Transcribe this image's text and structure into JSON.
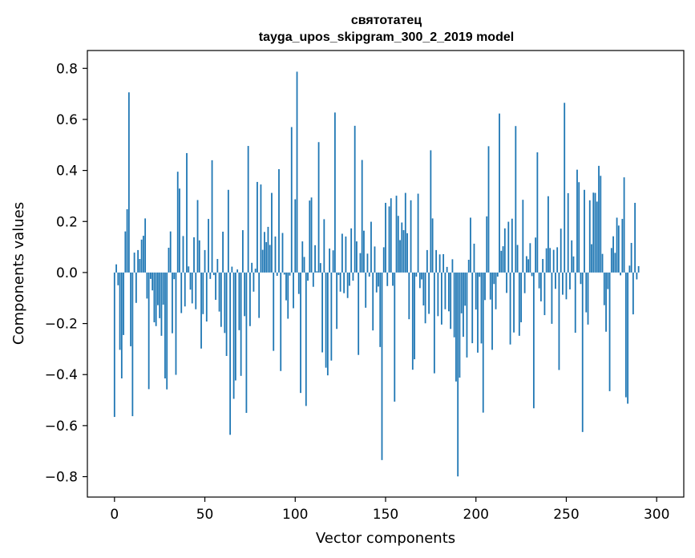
{
  "chart_data": {
    "type": "bar",
    "title": "святотатец",
    "subtitle": "tayga_upos_skipgram_300_2_2019 model",
    "xlabel": "Vector components",
    "ylabel": "Components values",
    "xlim": [
      -15,
      315
    ],
    "ylim": [
      -0.88,
      0.87
    ],
    "xticks": [
      0,
      50,
      100,
      150,
      200,
      250,
      300
    ],
    "xtick_labels": [
      "0",
      "50",
      "100",
      "150",
      "200",
      "250",
      "300"
    ],
    "yticks": [
      -0.8,
      -0.6,
      -0.4,
      -0.2,
      0.0,
      0.2,
      0.4,
      0.6,
      0.8
    ],
    "ytick_labels": [
      "−0.8",
      "−0.6",
      "−0.4",
      "−0.2",
      "0.0",
      "0.2",
      "0.4",
      "0.6",
      "0.8"
    ],
    "grid": false,
    "colors": {
      "bar": "#1f77b4",
      "axis": "#000000",
      "background": "#ffffff"
    },
    "series": [
      {
        "values": [
          -0.566,
          0.032,
          -0.05,
          -0.303,
          -0.415,
          -0.245,
          0.161,
          0.248,
          0.706,
          -0.289,
          -0.563,
          0.078,
          -0.119,
          0.088,
          0.053,
          0.129,
          0.144,
          0.212,
          -0.102,
          -0.457,
          -0.025,
          -0.07,
          -0.195,
          -0.21,
          -0.128,
          -0.179,
          -0.248,
          -0.126,
          -0.415,
          -0.458,
          0.097,
          0.161,
          -0.238,
          -0.026,
          -0.401,
          0.395,
          0.329,
          -0.159,
          0.143,
          -0.133,
          0.468,
          0.024,
          -0.067,
          -0.121,
          0.138,
          -0.144,
          0.284,
          0.126,
          -0.298,
          -0.163,
          0.088,
          -0.192,
          0.21,
          -0.025,
          0.44,
          -0.01,
          -0.107,
          0.053,
          -0.153,
          -0.213,
          0.16,
          -0.237,
          -0.327,
          0.324,
          -0.636,
          0.023,
          -0.495,
          -0.423,
          0.012,
          -0.226,
          -0.405,
          0.166,
          -0.171,
          -0.55,
          0.496,
          -0.21,
          0.038,
          -0.075,
          0.015,
          0.355,
          -0.178,
          0.345,
          0.089,
          0.159,
          0.119,
          0.179,
          0.108,
          0.312,
          -0.307,
          0.141,
          -0.013,
          0.405,
          -0.386,
          0.155,
          -0.008,
          -0.109,
          -0.181,
          -0.012,
          0.57,
          -0.14,
          0.287,
          0.787,
          -0.084,
          -0.472,
          0.122,
          0.061,
          -0.523,
          -0.032,
          0.282,
          0.294,
          -0.056,
          0.107,
          0.005,
          0.511,
          0.037,
          -0.313,
          0.209,
          -0.373,
          -0.403,
          0.094,
          -0.345,
          0.087,
          0.627,
          -0.221,
          -0.01,
          -0.075,
          0.152,
          -0.081,
          0.141,
          -0.1,
          -0.052,
          0.173,
          -0.032,
          0.575,
          0.122,
          -0.323,
          0.076,
          0.441,
          0.164,
          -0.138,
          0.074,
          -0.016,
          0.199,
          -0.227,
          0.102,
          -0.078,
          -0.055,
          -0.292,
          -0.735,
          0.099,
          0.273,
          -0.053,
          0.259,
          0.291,
          -0.052,
          -0.506,
          0.301,
          0.222,
          0.127,
          0.196,
          0.166,
          0.312,
          0.154,
          -0.183,
          0.283,
          -0.381,
          -0.34,
          -0.016,
          0.309,
          -0.061,
          -0.027,
          -0.129,
          -0.199,
          0.088,
          -0.162,
          0.479,
          0.212,
          -0.395,
          0.088,
          -0.171,
          0.071,
          -0.204,
          0.072,
          -0.144,
          0.022,
          -0.152,
          -0.221,
          0.052,
          -0.254,
          -0.427,
          -0.799,
          -0.412,
          -0.16,
          -0.252,
          -0.13,
          -0.333,
          0.05,
          0.215,
          -0.277,
          0.113,
          -0.145,
          -0.314,
          -0.017,
          -0.278,
          -0.549,
          -0.108,
          0.22,
          0.495,
          -0.106,
          -0.303,
          -0.045,
          -0.144,
          -0.016,
          0.623,
          0.085,
          0.103,
          0.173,
          -0.08,
          0.199,
          -0.282,
          0.211,
          -0.235,
          0.574,
          0.108,
          -0.248,
          -0.195,
          0.285,
          -0.081,
          0.064,
          0.052,
          0.115,
          -0.014,
          -0.532,
          0.137,
          0.471,
          -0.062,
          -0.113,
          0.053,
          -0.167,
          0.095,
          0.299,
          0.096,
          -0.201,
          0.089,
          -0.064,
          0.099,
          -0.382,
          0.172,
          -0.087,
          0.665,
          -0.105,
          0.311,
          -0.066,
          0.126,
          0.063,
          -0.236,
          0.403,
          0.354,
          -0.045,
          -0.625,
          0.324,
          -0.156,
          -0.204,
          0.283,
          0.111,
          0.313,
          0.312,
          0.278,
          0.418,
          0.379,
          0.073,
          -0.128,
          -0.232,
          -0.065,
          -0.465,
          0.096,
          0.142,
          0.077,
          0.215,
          0.184,
          -0.011,
          0.21,
          0.373,
          -0.489,
          -0.514,
          0.027,
          0.116,
          -0.164,
          0.273,
          -0.027,
          0.025
        ]
      }
    ]
  }
}
